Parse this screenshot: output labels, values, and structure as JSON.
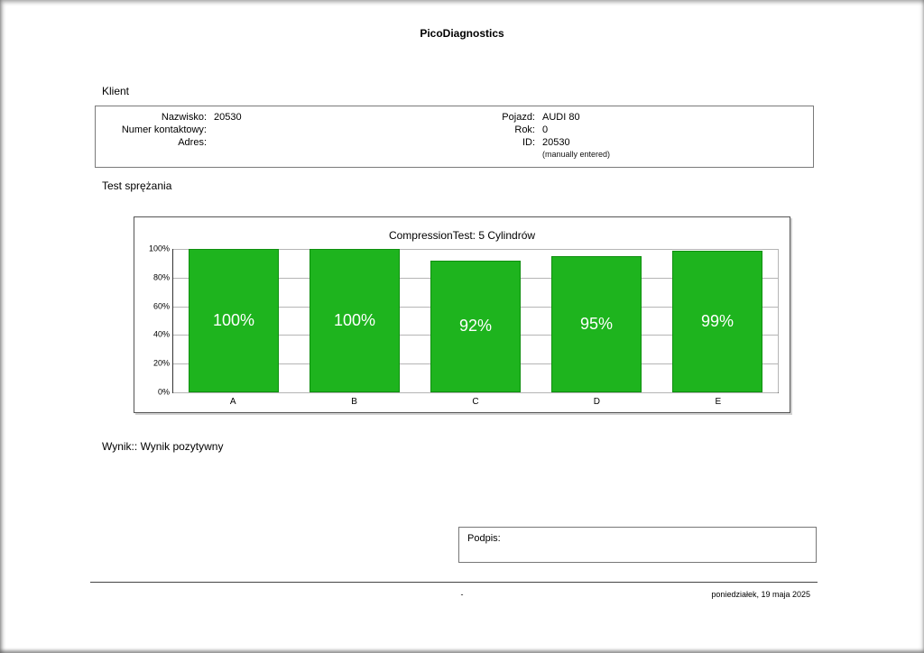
{
  "page": {
    "app_title": "PicoDiagnostics",
    "footer": {
      "center": "-",
      "date": "poniedziałek, 19 maja 2025"
    }
  },
  "client": {
    "section_label": "Klient",
    "left": [
      {
        "label": "Nazwisko:",
        "value": "20530"
      },
      {
        "label": "Numer kontaktowy:",
        "value": ""
      },
      {
        "label": "Adres:",
        "value": ""
      }
    ],
    "right": [
      {
        "label": "Pojazd:",
        "value": "AUDI 80"
      },
      {
        "label": "Rok:",
        "value": "0"
      },
      {
        "label": "ID:",
        "value": "20530"
      }
    ],
    "note": "(manually entered)"
  },
  "test": {
    "section_label": "Test sprężania",
    "result_label": "Wynik:: Wynik pozytywny"
  },
  "signature": {
    "label": "Podpis:"
  },
  "chart_data": {
    "type": "bar",
    "title": "CompressionTest: 5 Cylindrów",
    "categories": [
      "A",
      "B",
      "C",
      "D",
      "E"
    ],
    "values": [
      100,
      100,
      92,
      95,
      99
    ],
    "value_labels": [
      "100%",
      "100%",
      "92%",
      "95%",
      "99%"
    ],
    "y_ticks": [
      "100%",
      "80%",
      "60%",
      "40%",
      "20%",
      "0%"
    ],
    "ylim": [
      0,
      100
    ],
    "ylabel": "",
    "xlabel": "",
    "grid": true,
    "legend": false,
    "bar_color": "#1eb41e",
    "bar_border_color": "#0f8f0f",
    "label_color": "#ffffff"
  }
}
